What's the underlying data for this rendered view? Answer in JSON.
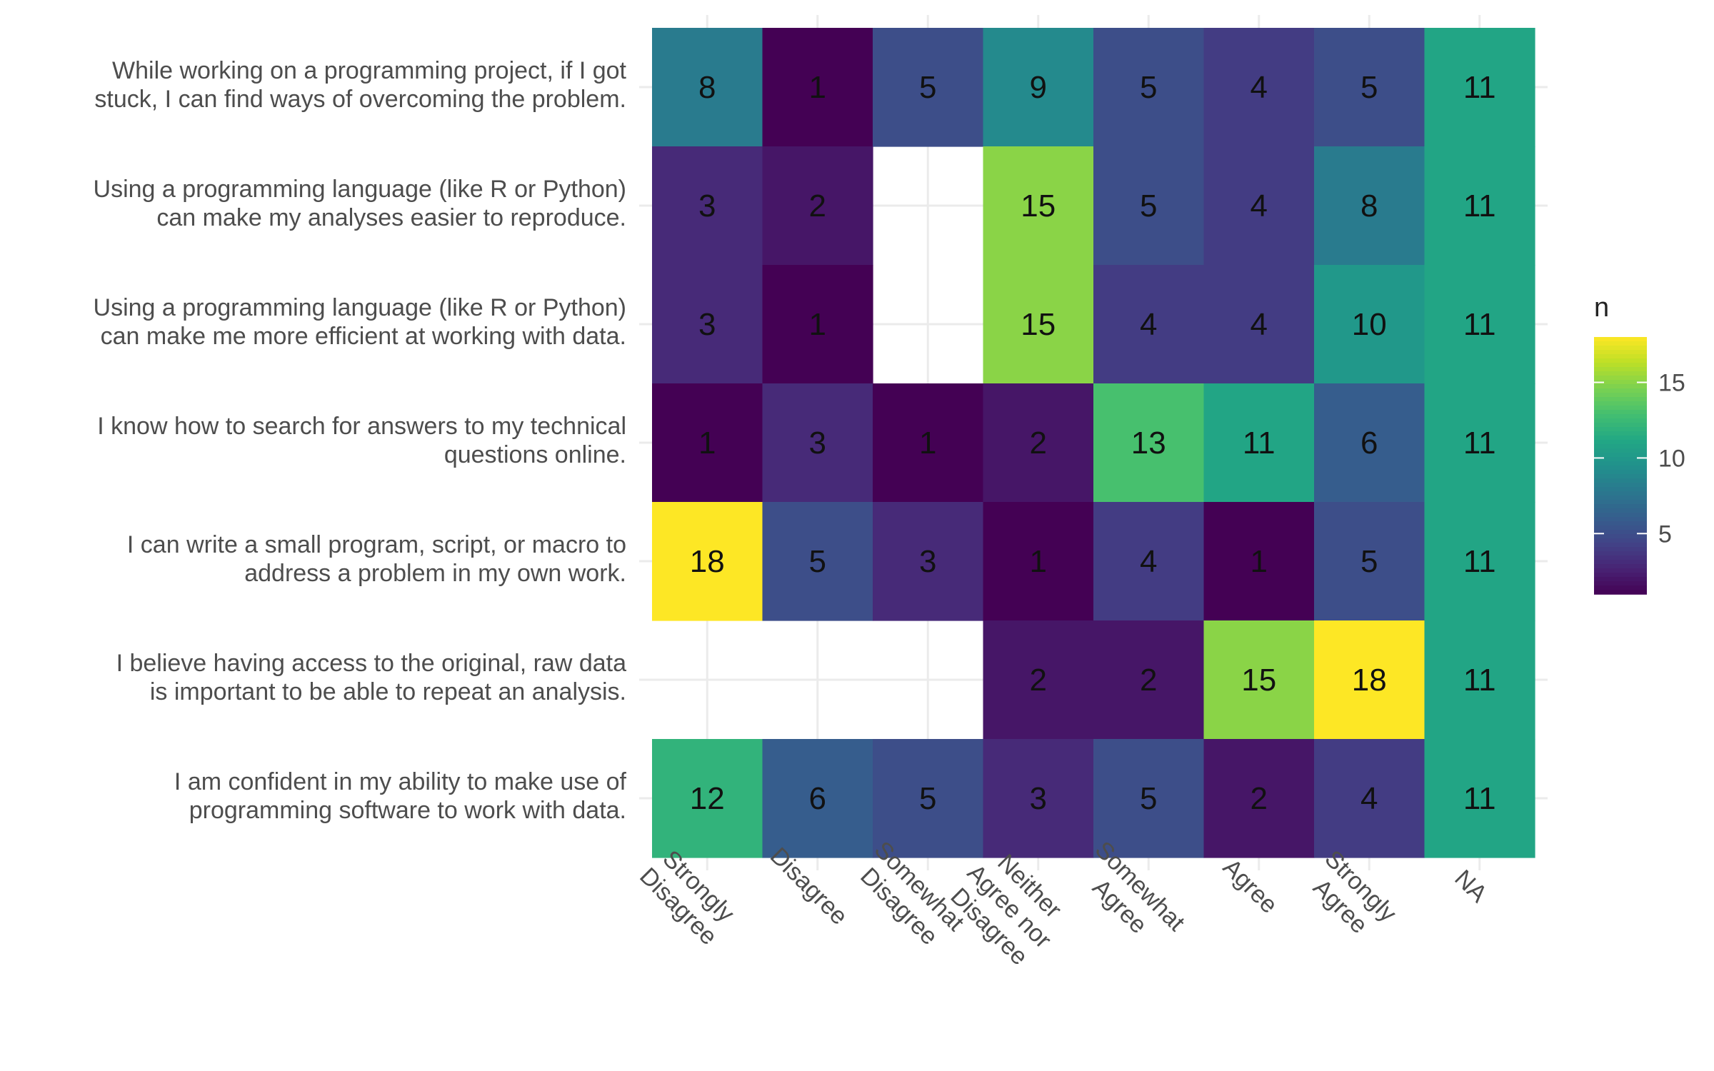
{
  "chart_data": {
    "type": "heatmap",
    "title": "",
    "xlabel": "",
    "ylabel": "",
    "x_categories": [
      [
        "Strongly",
        "Disagree"
      ],
      [
        "Disagree"
      ],
      [
        "Somewhat",
        "Disagree"
      ],
      [
        "Neither",
        "Agree nor",
        "Disagree"
      ],
      [
        "Somewhat",
        "Agree"
      ],
      [
        "Agree"
      ],
      [
        "Strongly",
        "Agree"
      ],
      [
        "NA"
      ]
    ],
    "y_categories": [
      [
        "While working on a programming project, if I got",
        "stuck, I can find ways of overcoming the problem."
      ],
      [
        "Using a programming language (like R or Python)",
        "can make my analyses easier to reproduce."
      ],
      [
        "Using a programming language (like R or Python)",
        "can make me more efficient at working with data."
      ],
      [
        "I know how to search for answers to my technical",
        "questions online."
      ],
      [
        "I can write a small program, script, or macro to",
        "address a problem in my own work."
      ],
      [
        "I believe having access to the original, raw data",
        "is important to be able to repeat an analysis."
      ],
      [
        "I am confident in my ability to make use of",
        "programming software to work with data."
      ]
    ],
    "values": [
      [
        8,
        1,
        5,
        9,
        5,
        4,
        5,
        11
      ],
      [
        3,
        2,
        null,
        15,
        5,
        4,
        8,
        11
      ],
      [
        3,
        1,
        null,
        15,
        4,
        4,
        10,
        11
      ],
      [
        1,
        3,
        1,
        2,
        13,
        11,
        6,
        11
      ],
      [
        18,
        5,
        3,
        1,
        4,
        1,
        5,
        11
      ],
      [
        null,
        null,
        null,
        2,
        2,
        15,
        18,
        11
      ],
      [
        12,
        6,
        5,
        3,
        5,
        2,
        4,
        11
      ]
    ],
    "color_scale": {
      "name": "viridis",
      "min": 1,
      "max": 18
    },
    "legend": {
      "title": "n",
      "ticks": [
        5,
        10,
        15
      ],
      "position": "right"
    },
    "grid": true
  }
}
